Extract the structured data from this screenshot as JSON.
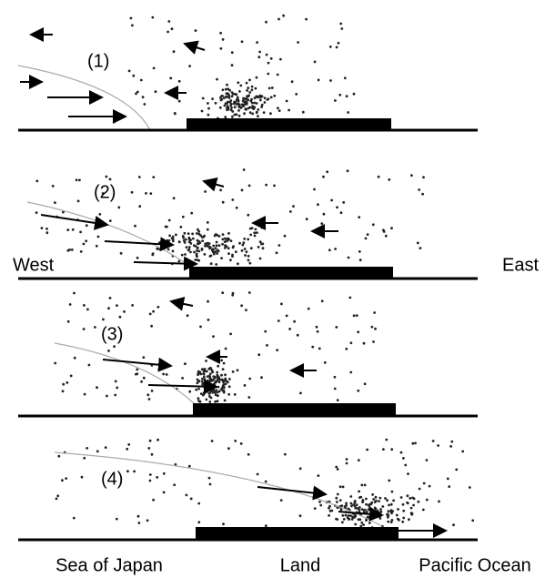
{
  "panels": [
    {
      "label": "(1)"
    },
    {
      "label": "(2)"
    },
    {
      "label": "(3)"
    },
    {
      "label": "(4)"
    }
  ],
  "side_labels": {
    "west": "West",
    "east": "East"
  },
  "bottom_labels": {
    "sea": "Sea of Japan",
    "land": "Land",
    "ocean": "Pacific Ocean"
  }
}
